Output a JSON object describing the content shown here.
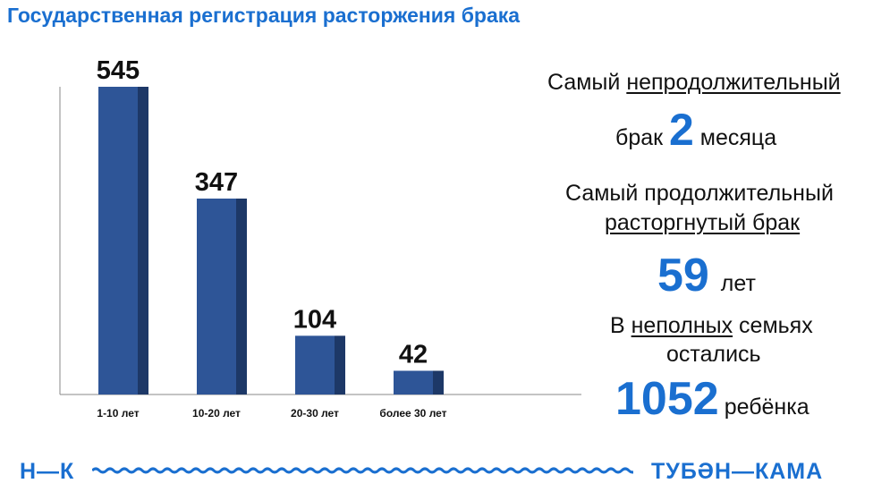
{
  "title": "Государственная регистрация расторжения брака",
  "chart_data": {
    "type": "bar",
    "categories": [
      "1-10 лет",
      "10-20 лет",
      "20-30 лет",
      "более 30 лет"
    ],
    "values": [
      545,
      347,
      104,
      42
    ],
    "ylim": [
      0,
      545
    ],
    "grid": false,
    "bar_color": "#2e5597",
    "bar_shade_color": "#1d3867"
  },
  "facts": {
    "shortest": {
      "line1_prefix": "Самый ",
      "line1_underlined": "непродолжительный",
      "line2_prefix": "брак ",
      "number": "2",
      "line2_suffix": " месяца"
    },
    "longest": {
      "line1": "Самый продолжительный",
      "line2_underlined": "расторгнутый брак",
      "number": "59",
      "suffix": " лет"
    },
    "children": {
      "line1_prefix": "В ",
      "line1_underlined": "неполных",
      "line1_suffix": " семьях",
      "line2": "остались",
      "number": "1052",
      "suffix": "ребёнка"
    }
  },
  "footer": {
    "left_logo": "Н—К",
    "right_logo": "ТУБӘН—КАМА"
  },
  "colors": {
    "accent": "#1a6fd0",
    "axis": "#888888"
  }
}
